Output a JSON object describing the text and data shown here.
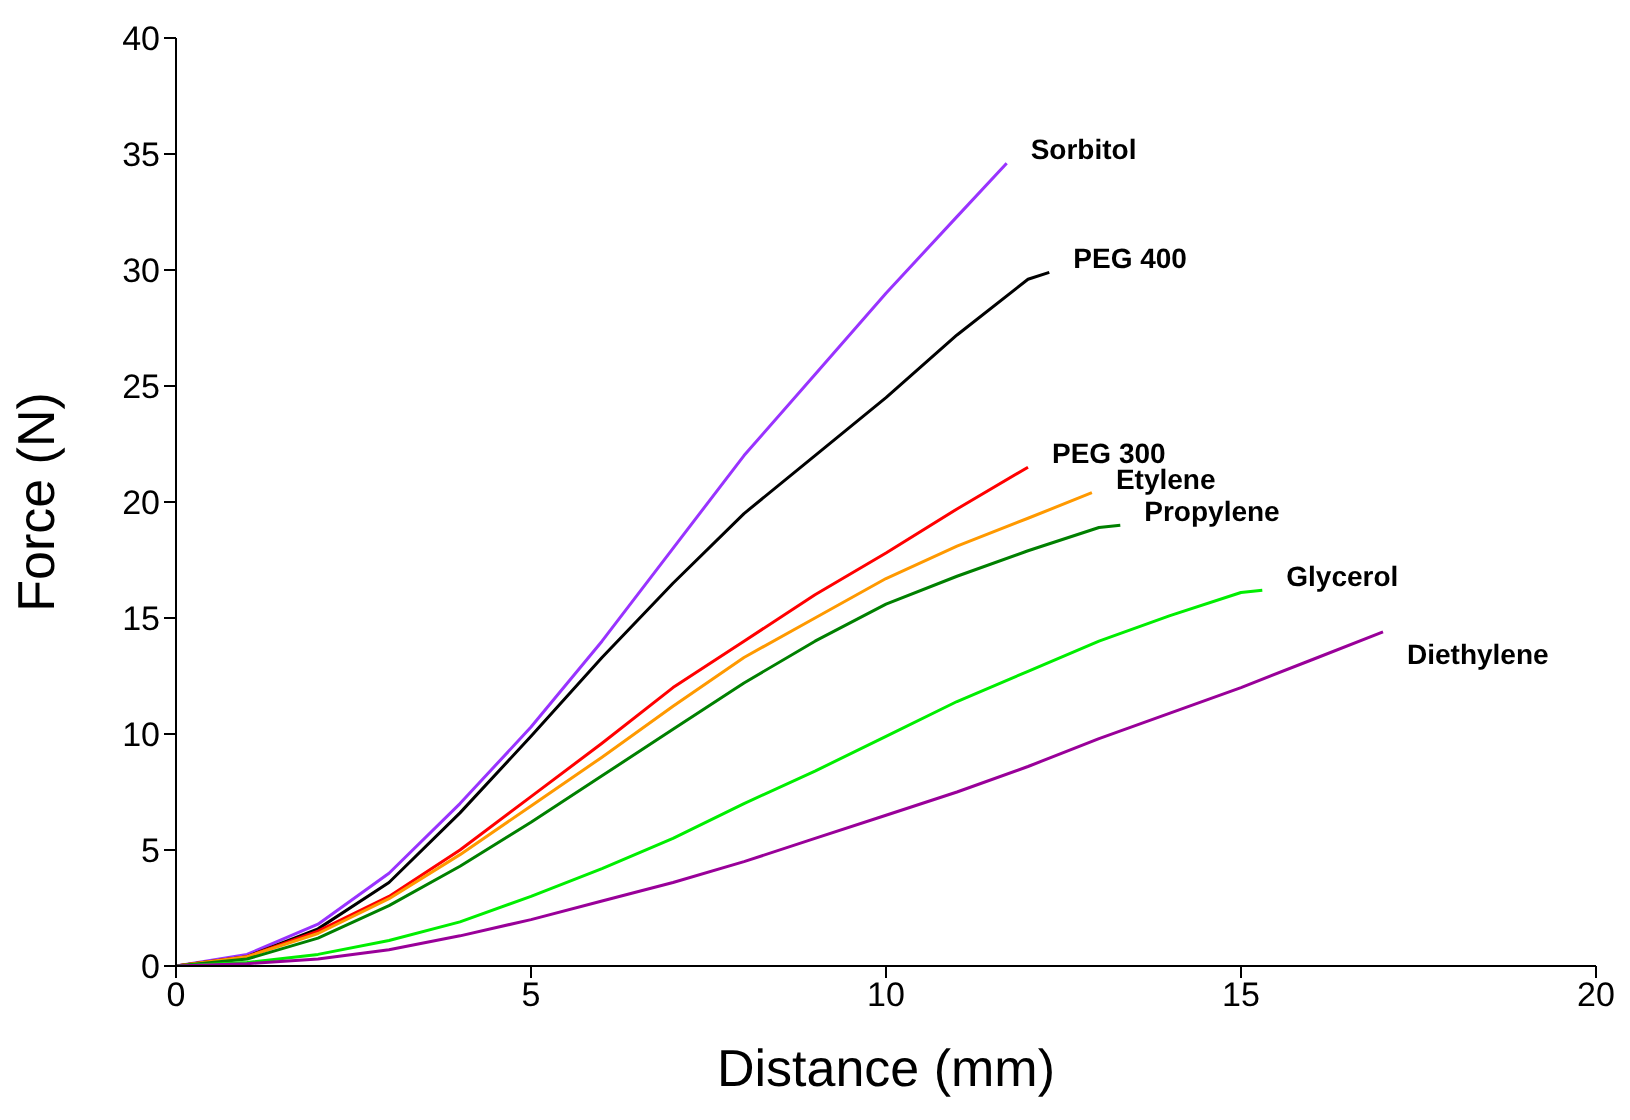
{
  "chart_data": {
    "type": "line",
    "xlabel": "Distance (mm)",
    "ylabel": "Force (N)",
    "xlim": [
      0,
      20
    ],
    "xticks": [
      0,
      5,
      10,
      15,
      20
    ],
    "ylim": [
      0,
      40
    ],
    "yticks": [
      0,
      5,
      10,
      15,
      20,
      25,
      30,
      35,
      40
    ],
    "grid": false,
    "legend": false,
    "marker": "none",
    "line_style": "solid",
    "series": [
      {
        "name": "Sorbitol",
        "color": "#9933ff",
        "x": [
          0,
          1,
          2,
          3,
          4,
          5,
          6,
          7,
          8,
          9,
          10,
          11,
          11.7
        ],
        "values": [
          0,
          0.5,
          1.8,
          4,
          7,
          10.3,
          14,
          18,
          22,
          25.5,
          29,
          32.3,
          34.6
        ]
      },
      {
        "name": "PEG 400",
        "color": "#000000",
        "x": [
          0,
          1,
          2,
          3,
          4,
          5,
          6,
          7,
          8,
          9,
          10,
          11,
          12,
          12.3
        ],
        "values": [
          0,
          0.4,
          1.6,
          3.6,
          6.6,
          9.9,
          13.3,
          16.5,
          19.5,
          22,
          24.5,
          27.2,
          29.6,
          29.9
        ]
      },
      {
        "name": "PEG 300",
        "color": "#ff0000",
        "x": [
          0,
          1,
          2,
          3,
          4,
          5,
          6,
          7,
          8,
          9,
          10,
          11,
          12
        ],
        "values": [
          0,
          0.4,
          1.5,
          3,
          5,
          7.3,
          9.6,
          12,
          14,
          16,
          17.8,
          19.7,
          21.5
        ]
      },
      {
        "name": "Etylene",
        "color": "#ff9900",
        "x": [
          0,
          1,
          2,
          3,
          4,
          5,
          6,
          7,
          8,
          9,
          10,
          11,
          12,
          12.9
        ],
        "values": [
          0,
          0.4,
          1.4,
          2.9,
          4.8,
          6.9,
          9,
          11.2,
          13.3,
          15,
          16.7,
          18.1,
          19.3,
          20.4
        ]
      },
      {
        "name": "Propylene",
        "color": "#008000",
        "x": [
          0,
          1,
          2,
          3,
          4,
          5,
          6,
          7,
          8,
          9,
          10,
          11,
          12,
          13,
          13.3
        ],
        "values": [
          0,
          0.3,
          1.2,
          2.6,
          4.3,
          6.2,
          8.2,
          10.2,
          12.2,
          14,
          15.6,
          16.8,
          17.9,
          18.9,
          19
        ]
      },
      {
        "name": "Glycerol",
        "color": "#00ee00",
        "x": [
          0,
          1,
          2,
          3,
          4,
          5,
          6,
          7,
          8,
          9,
          10,
          11,
          12,
          13,
          14,
          15,
          15.3
        ],
        "values": [
          0,
          0.15,
          0.5,
          1.1,
          1.9,
          3,
          4.2,
          5.5,
          7,
          8.4,
          9.9,
          11.4,
          12.7,
          14,
          15.1,
          16.1,
          16.2
        ]
      },
      {
        "name": "Diethylene",
        "color": "#990099",
        "x": [
          0,
          1,
          2,
          3,
          4,
          5,
          6,
          7,
          8,
          9,
          10,
          11,
          12,
          13,
          14,
          15,
          16,
          17
        ],
        "values": [
          0,
          0.1,
          0.3,
          0.7,
          1.3,
          2,
          2.8,
          3.6,
          4.5,
          5.5,
          6.5,
          7.5,
          8.6,
          9.8,
          10.9,
          12,
          13.2,
          14.4
        ]
      }
    ]
  }
}
